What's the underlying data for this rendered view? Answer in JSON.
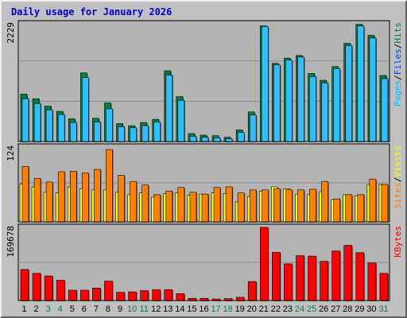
{
  "title": "Daily usage for January 2026",
  "colors": {
    "background": "#c0c0c0",
    "plot_bg": "#b4b4b4",
    "title": "#0000cc",
    "pages": "#00c0ff",
    "files": "#2fbfff",
    "hits": "#008040",
    "sites": "#ff8000",
    "visits": "#ffff00",
    "kbytes": "#ff0000",
    "weekday": "#000000",
    "weekend": "#00804a"
  },
  "legend": {
    "top": [
      {
        "text": "Pages",
        "color": "#00c0ff"
      },
      {
        "text": "/",
        "color": "#000000"
      },
      {
        "text": "Files",
        "color": "#0040ff"
      },
      {
        "text": "/",
        "color": "#000000"
      },
      {
        "text": "Hits",
        "color": "#008040"
      }
    ],
    "middle": [
      {
        "text": "Sites",
        "color": "#ff8000"
      },
      {
        "text": "/",
        "color": "#000000"
      },
      {
        "text": "Visits",
        "color": "#ffff00"
      }
    ],
    "bottom": [
      {
        "text": "KBytes",
        "color": "#ff0000"
      }
    ]
  },
  "chart_data": [
    {
      "type": "bar",
      "title": "Daily usage for January 2026",
      "panel": "hits-files-pages",
      "ymax_label": "2229",
      "ylim": [
        0,
        2229
      ],
      "categories": [
        "1",
        "2",
        "3",
        "4",
        "5",
        "6",
        "7",
        "8",
        "9",
        "10",
        "11",
        "12",
        "13",
        "14",
        "15",
        "16",
        "17",
        "18",
        "19",
        "20",
        "21",
        "22",
        "23",
        "24",
        "25",
        "26",
        "27",
        "28",
        "29",
        "30",
        "31"
      ],
      "series": [
        {
          "name": "Hits",
          "values": [
            900,
            810,
            670,
            570,
            430,
            1300,
            440,
            730,
            340,
            300,
            360,
            420,
            1340,
            850,
            150,
            120,
            110,
            80,
            220,
            560,
            2190,
            1480,
            1580,
            1630,
            1290,
            1160,
            1420,
            1860,
            2220,
            2010,
            1250
          ]
        },
        {
          "name": "Files",
          "values": [
            810,
            720,
            600,
            510,
            360,
            1210,
            370,
            620,
            280,
            260,
            300,
            370,
            1260,
            780,
            100,
            80,
            70,
            50,
            170,
            500,
            2180,
            1450,
            1540,
            1600,
            1230,
            1110,
            1380,
            1820,
            2190,
            1960,
            1190
          ]
        }
      ]
    },
    {
      "type": "bar",
      "panel": "sites-visits",
      "ymax_label": "124",
      "ylim": [
        0,
        124
      ],
      "categories": [
        "1",
        "2",
        "3",
        "4",
        "5",
        "6",
        "7",
        "8",
        "9",
        "10",
        "11",
        "12",
        "13",
        "14",
        "15",
        "16",
        "17",
        "18",
        "19",
        "20",
        "21",
        "22",
        "23",
        "24",
        "25",
        "26",
        "27",
        "28",
        "29",
        "30",
        "31"
      ],
      "series": [
        {
          "name": "Visits",
          "values": [
            63,
            58,
            49,
            48,
            58,
            55,
            53,
            53,
            49,
            45,
            48,
            41,
            47,
            48,
            44,
            46,
            48,
            47,
            33,
            42,
            51,
            58,
            55,
            46,
            45,
            50,
            37,
            45,
            43,
            62,
            62
          ]
        },
        {
          "name": "Sites",
          "values": [
            92,
            72,
            66,
            83,
            84,
            81,
            87,
            120,
            77,
            67,
            61,
            45,
            51,
            57,
            49,
            46,
            57,
            58,
            48,
            53,
            53,
            55,
            53,
            53,
            54,
            67,
            38,
            45,
            45,
            71,
            62
          ]
        }
      ]
    },
    {
      "type": "bar",
      "panel": "kbytes",
      "ymax_label": "169678",
      "ylim": [
        0,
        169678
      ],
      "categories": [
        "1",
        "2",
        "3",
        "4",
        "5",
        "6",
        "7",
        "8",
        "9",
        "10",
        "11",
        "12",
        "13",
        "14",
        "15",
        "16",
        "17",
        "18",
        "19",
        "20",
        "21",
        "22",
        "23",
        "24",
        "25",
        "26",
        "27",
        "28",
        "29",
        "30",
        "31"
      ],
      "series": [
        {
          "name": "KBytes",
          "values": [
            72000,
            63000,
            57000,
            47000,
            24000,
            24000,
            29000,
            45000,
            19000,
            20000,
            23000,
            25000,
            25000,
            16000,
            5000,
            5000,
            3500,
            4500,
            7500,
            44000,
            169678,
            112000,
            85000,
            104000,
            103000,
            91000,
            115000,
            128000,
            111000,
            87000,
            63000
          ]
        }
      ]
    }
  ],
  "weekend_days": [
    "3",
    "4",
    "10",
    "11",
    "17",
    "18",
    "24",
    "25",
    "31"
  ]
}
